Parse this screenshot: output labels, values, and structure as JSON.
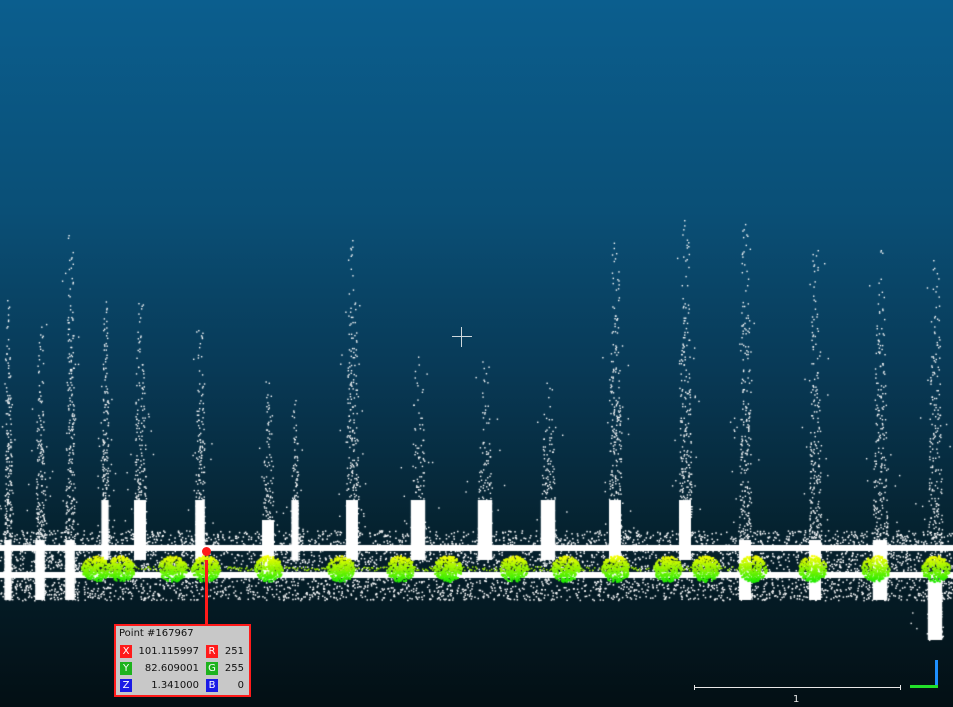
{
  "viewer": {
    "picked_point": {
      "title": "Point #167967",
      "coords": [
        {
          "axis": "X",
          "value": "101.115997",
          "color": "#ff1a1a"
        },
        {
          "axis": "Y",
          "value": "82.609001",
          "color": "#1db31d"
        },
        {
          "axis": "Z",
          "value": "1.341000",
          "color": "#1a1ae6"
        }
      ],
      "rgb": [
        {
          "channel": "R",
          "value": "251",
          "color": "#ff1a1a"
        },
        {
          "channel": "G",
          "value": "255",
          "color": "#1db31d"
        },
        {
          "channel": "B",
          "value": "0",
          "color": "#1a1ae6"
        }
      ]
    },
    "scale_label": "1",
    "colors": {
      "background_top": "#0b5e8e",
      "background_bottom": "#030f14",
      "points_default": "#ffffff",
      "points_highlight": "#9be80f",
      "label_border": "#ff1a1a"
    }
  }
}
